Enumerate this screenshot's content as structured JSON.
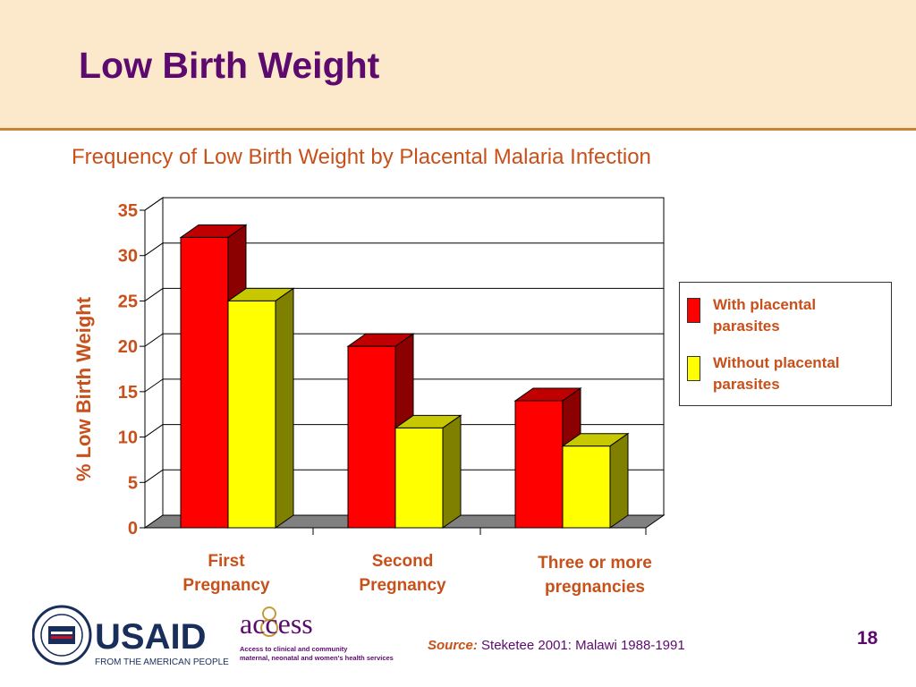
{
  "slide": {
    "title": "Low Birth Weight",
    "page_number": "18"
  },
  "source": {
    "prefix": "Source:",
    "text": "Steketee 2001: Malawi 1988-1991"
  },
  "logos": {
    "usaid_text": "USAID",
    "usaid_tagline": "FROM THE AMERICAN PEOPLE",
    "access_text": "access",
    "access_tagline_1": "Access to clinical and community",
    "access_tagline_2": "maternal, neonatal and women's health services"
  },
  "chart_data": {
    "type": "bar",
    "title": "Frequency of Low Birth Weight by Placental Malaria Infection",
    "ylabel": "% Low Birth Weight",
    "xlabel": "",
    "ylim": [
      0,
      35
    ],
    "yticks": [
      0,
      5,
      10,
      15,
      20,
      25,
      30,
      35
    ],
    "categories": [
      [
        "First",
        "Pregnancy"
      ],
      [
        "Second",
        "Pregnancy"
      ],
      [
        "Three or more",
        "pregnancies"
      ]
    ],
    "series": [
      {
        "name": "With placental parasites",
        "legend_lines": [
          "With placental",
          "parasites"
        ],
        "values": [
          32,
          20,
          14
        ],
        "color": "#ff0000",
        "side_color": "#8b0000",
        "top_color": "#c00000"
      },
      {
        "name": "Without placental parasites",
        "legend_lines": [
          "Without placental",
          "parasites"
        ],
        "values": [
          25,
          11,
          9
        ],
        "color": "#ffff00",
        "side_color": "#808000",
        "top_color": "#c8c800"
      }
    ],
    "grid": true,
    "legend_position": "right"
  }
}
